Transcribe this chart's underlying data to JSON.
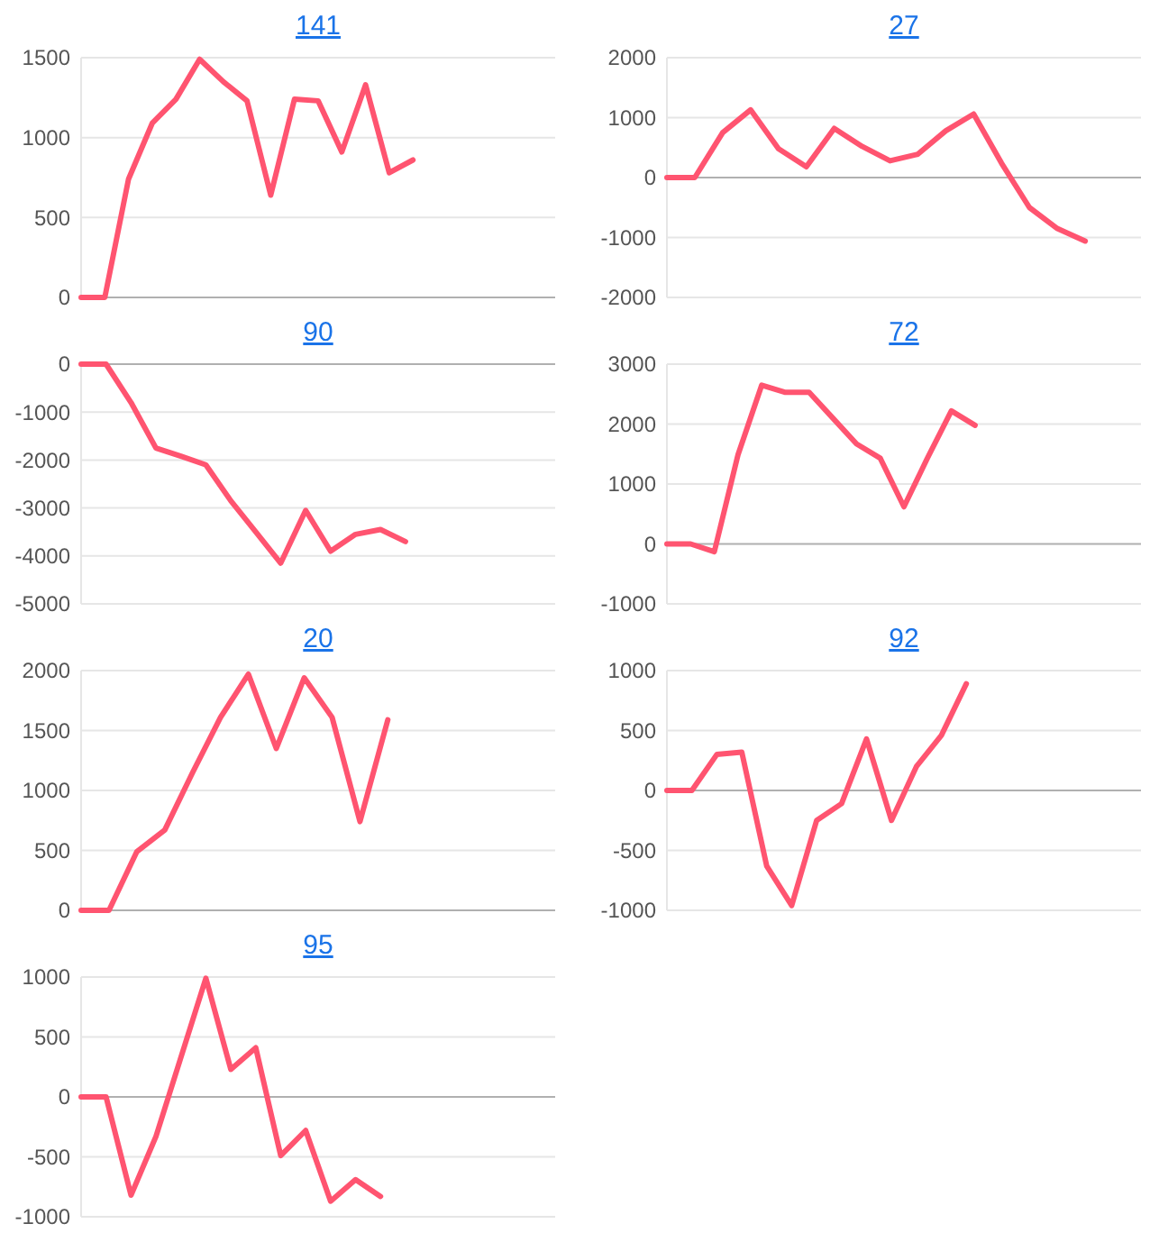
{
  "chart_data": [
    {
      "type": "line",
      "title": "141",
      "categories": [
        null,
        null,
        null,
        null,
        null,
        null,
        null,
        null,
        null,
        null,
        null,
        null,
        null,
        null,
        null,
        null,
        null,
        null,
        null,
        null,
        null
      ],
      "values": [
        0,
        0,
        740,
        1090,
        1240,
        1490,
        1350,
        1230,
        640,
        1240,
        1230,
        910,
        1330,
        780,
        860,
        null,
        null,
        null,
        null,
        null,
        null
      ],
      "color": "#ff5470",
      "ylim": [
        0,
        1500
      ],
      "yticks": [
        0,
        500,
        1000,
        1500
      ],
      "grid": "y",
      "tick_labels": "y"
    },
    {
      "type": "line",
      "title": "27",
      "categories": [
        null,
        null,
        null,
        null,
        null,
        null,
        null,
        null,
        null,
        null,
        null,
        null,
        null,
        null,
        null,
        null,
        null,
        null
      ],
      "values": [
        0,
        0,
        750,
        1130,
        480,
        180,
        820,
        520,
        280,
        390,
        780,
        1060,
        240,
        -500,
        -850,
        -1060,
        null,
        null
      ],
      "color": "#ff5470",
      "ylim": [
        -2000,
        2000
      ],
      "yticks": [
        -2000,
        -1000,
        0,
        1000,
        2000
      ],
      "grid": "y",
      "tick_labels": "y"
    },
    {
      "type": "line",
      "title": "90",
      "categories": [
        null,
        null,
        null,
        null,
        null,
        null,
        null,
        null,
        null,
        null,
        null,
        null,
        null,
        null,
        null,
        null,
        null,
        null,
        null,
        null
      ],
      "values": [
        0,
        0,
        -800,
        -1750,
        -1920,
        -2100,
        -2850,
        -3500,
        -4150,
        -3050,
        -3900,
        -3550,
        -3450,
        -3700,
        null,
        null,
        null,
        null,
        null,
        null
      ],
      "color": "#ff5470",
      "ylim": [
        -5000,
        0
      ],
      "yticks": [
        -5000,
        -4000,
        -3000,
        -2000,
        -1000,
        0
      ],
      "grid": "y",
      "tick_labels": "y"
    },
    {
      "type": "line",
      "title": "72",
      "categories": [
        null,
        null,
        null,
        null,
        null,
        null,
        null,
        null,
        null,
        null,
        null,
        null,
        null,
        null,
        null,
        null,
        null,
        null,
        null,
        null,
        null
      ],
      "values": [
        0,
        0,
        -130,
        1490,
        2650,
        2530,
        2530,
        2100,
        1670,
        1430,
        620,
        1440,
        2220,
        1980,
        null,
        null,
        null,
        null,
        null,
        null,
        null
      ],
      "color": "#ff5470",
      "ylim": [
        -1000,
        3000
      ],
      "yticks": [
        -1000,
        0,
        1000,
        2000,
        3000
      ],
      "grid": "y",
      "tick_labels": "y"
    },
    {
      "type": "line",
      "title": "20",
      "categories": [
        null,
        null,
        null,
        null,
        null,
        null,
        null,
        null,
        null,
        null,
        null,
        null,
        null,
        null,
        null,
        null,
        null,
        null
      ],
      "values": [
        0,
        0,
        490,
        670,
        1150,
        1610,
        1970,
        1350,
        1940,
        1610,
        740,
        1590,
        null,
        null,
        null,
        null,
        null,
        null
      ],
      "color": "#ff5470",
      "ylim": [
        0,
        2000
      ],
      "yticks": [
        0,
        500,
        1000,
        1500,
        2000
      ],
      "grid": "y",
      "tick_labels": "y"
    },
    {
      "type": "line",
      "title": "92",
      "categories": [
        null,
        null,
        null,
        null,
        null,
        null,
        null,
        null,
        null,
        null,
        null,
        null,
        null,
        null,
        null,
        null,
        null,
        null,
        null,
        null
      ],
      "values": [
        0,
        0,
        300,
        320,
        -630,
        -960,
        -250,
        -110,
        430,
        -250,
        200,
        460,
        890,
        null,
        null,
        null,
        null,
        null,
        null,
        null
      ],
      "color": "#ff5470",
      "ylim": [
        -1000,
        1000
      ],
      "yticks": [
        -1000,
        -500,
        0,
        500,
        1000
      ],
      "grid": "y",
      "tick_labels": "y"
    },
    {
      "type": "line",
      "title": "95",
      "categories": [
        null,
        null,
        null,
        null,
        null,
        null,
        null,
        null,
        null,
        null,
        null,
        null,
        null,
        null,
        null,
        null,
        null,
        null,
        null,
        null
      ],
      "values": [
        0,
        0,
        -820,
        -330,
        330,
        990,
        230,
        410,
        -490,
        -280,
        -870,
        -690,
        -830,
        null,
        null,
        null,
        null,
        null,
        null,
        null
      ],
      "color": "#ff5470",
      "ylim": [
        -1000,
        1000
      ],
      "yticks": [
        -1000,
        -500,
        0,
        500,
        1000
      ],
      "grid": "y",
      "tick_labels": "y"
    }
  ]
}
